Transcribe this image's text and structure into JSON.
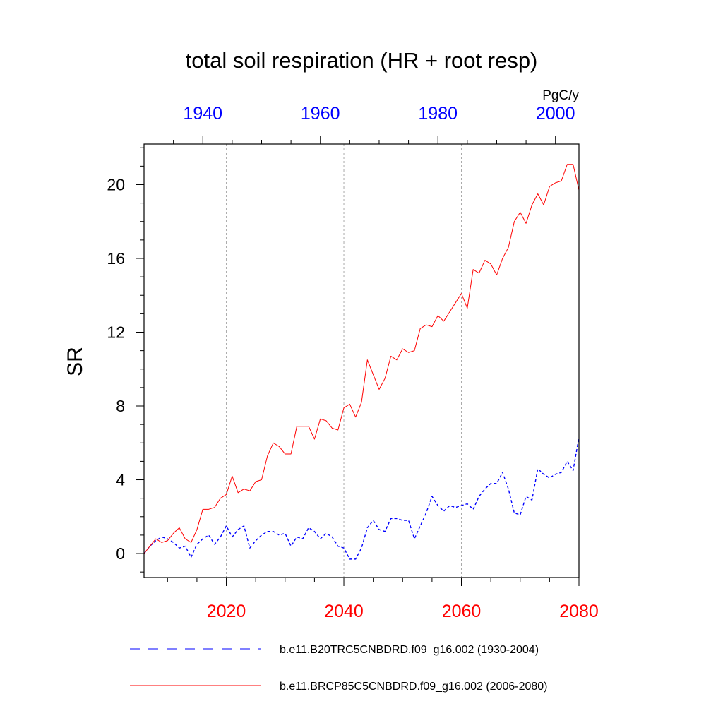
{
  "chart_data": {
    "type": "line",
    "title": "total soil respiration (HR + root resp)",
    "units": "PgC/y",
    "ylabel": "SR",
    "ylim": [
      -1.3,
      22.2
    ],
    "yticks": [
      0,
      4,
      8,
      12,
      16,
      20
    ],
    "ytick_labels": [
      "0",
      "4",
      "8",
      "12",
      "16",
      "20"
    ],
    "x_bottom": {
      "range": [
        2006,
        2080
      ],
      "ticks": [
        2020,
        2040,
        2060,
        2080
      ],
      "tick_labels": [
        "2020",
        "2040",
        "2060",
        "2080"
      ],
      "color": "#ff0000"
    },
    "x_top": {
      "range": [
        1930,
        2004
      ],
      "ticks": [
        1940,
        1960,
        1980,
        2000
      ],
      "tick_labels": [
        "1940",
        "1960",
        "1980",
        "2000"
      ],
      "color": "#0000ff"
    },
    "gridlines_x": [
      2020,
      2040,
      2060
    ],
    "legend_position": "bottom",
    "series": [
      {
        "name": "b.e11.B20TRC5CNBDRD.f09_g16.002 (1930-2004)",
        "color": "#0000ff",
        "style": "dashed",
        "axis": "top",
        "x_start": 1930,
        "values": [
          0.0,
          0.4,
          0.7,
          0.9,
          0.8,
          0.6,
          0.3,
          0.4,
          -0.2,
          0.5,
          0.8,
          1.0,
          0.5,
          0.9,
          1.5,
          0.9,
          1.3,
          1.5,
          0.3,
          0.7,
          1.0,
          1.2,
          1.2,
          1.0,
          1.1,
          0.4,
          0.9,
          0.8,
          1.4,
          1.2,
          0.8,
          1.1,
          0.9,
          0.4,
          0.3,
          -0.3,
          -0.3,
          0.3,
          1.4,
          1.8,
          1.3,
          1.2,
          1.9,
          1.9,
          1.8,
          1.8,
          0.8,
          1.5,
          2.2,
          3.1,
          2.6,
          2.3,
          2.6,
          2.5,
          2.6,
          2.7,
          2.4,
          3.1,
          3.5,
          3.8,
          3.8,
          4.4,
          3.5,
          2.2,
          2.1,
          3.1,
          2.9,
          4.6,
          4.3,
          4.1,
          4.3,
          4.4,
          5.0,
          4.5,
          6.3
        ]
      },
      {
        "name": "b.e11.BRCP85C5CNBDRD.f09_g16.002 (2006-2080)",
        "color": "#ff0000",
        "style": "solid",
        "axis": "bottom",
        "x_start": 2006,
        "values": [
          0.0,
          0.4,
          0.8,
          0.6,
          0.7,
          1.1,
          1.4,
          0.8,
          0.6,
          1.3,
          2.4,
          2.4,
          2.5,
          3.0,
          3.2,
          4.2,
          3.3,
          3.5,
          3.4,
          3.9,
          4.0,
          5.3,
          6.0,
          5.8,
          5.4,
          5.4,
          6.9,
          6.9,
          6.9,
          6.2,
          7.3,
          7.2,
          6.8,
          6.7,
          7.9,
          8.1,
          7.4,
          8.2,
          10.5,
          9.7,
          8.9,
          9.5,
          10.7,
          10.5,
          11.1,
          10.9,
          11.0,
          12.2,
          12.4,
          12.3,
          12.9,
          12.6,
          13.1,
          13.6,
          14.1,
          13.3,
          15.4,
          15.2,
          15.9,
          15.7,
          15.1,
          16.0,
          16.6,
          18.0,
          18.5,
          17.9,
          18.9,
          19.5,
          18.9,
          19.9,
          20.1,
          20.2,
          21.1,
          21.1,
          19.7
        ]
      }
    ]
  }
}
